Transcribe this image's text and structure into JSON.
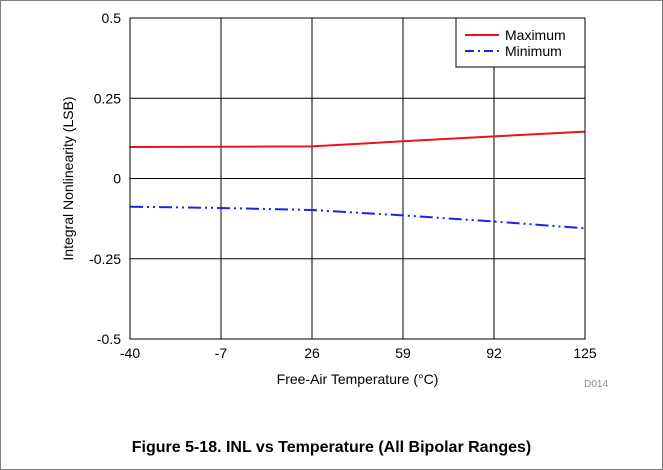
{
  "figure_caption": "Figure 5-18. INL vs Temperature (All Bipolar Ranges)",
  "figure_tag": "D014",
  "chart_data": {
    "type": "line",
    "xlabel": "Free-Air Temperature (°C)",
    "ylabel": "Integral Nonlinearity (LSB)",
    "x_ticks": [
      "-40",
      "-7",
      "26",
      "59",
      "92",
      "125"
    ],
    "y_ticks": [
      "0.5",
      "0.25",
      "0",
      "-0.25",
      "-0.5"
    ],
    "xlim": [
      -40,
      125
    ],
    "ylim": [
      -0.5,
      0.5
    ],
    "grid": true,
    "legend_position": "top-right",
    "x": [
      -40,
      -7,
      26,
      59,
      92,
      125
    ],
    "series": [
      {
        "name": "Maximum",
        "color": "#e8141b",
        "style": "solid",
        "values": [
          0.098,
          0.099,
          0.1,
          0.116,
          0.131,
          0.146
        ]
      },
      {
        "name": "Minimum",
        "color": "#1e22e6",
        "style": "dash-dot-dot",
        "values": [
          -0.088,
          -0.092,
          -0.098,
          -0.115,
          -0.134,
          -0.155
        ]
      }
    ]
  }
}
